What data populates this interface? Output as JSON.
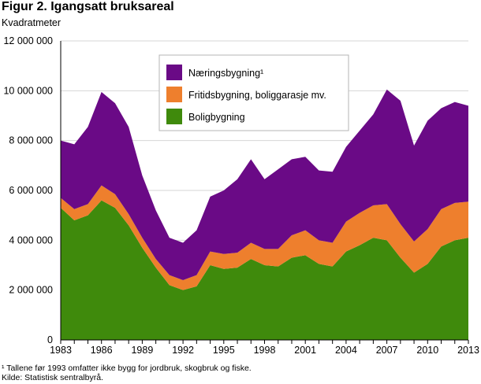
{
  "title": "Figur 2. Igangsatt bruksareal",
  "ylabel": "Kvadratmeter",
  "footnote": "¹ Tallene før 1993 omfatter ikke bygg for jordbruk, skogbruk og fiske.",
  "source": "Kilde: Statistisk sentralbyrå.",
  "colors": {
    "bolig": "#3f8a0c",
    "fritid": "#ee7f2d",
    "naering": "#6a0a86"
  },
  "chart_data": {
    "type": "area",
    "stacked": true,
    "x": [
      1983,
      1984,
      1985,
      1986,
      1987,
      1988,
      1989,
      1990,
      1991,
      1992,
      1993,
      1994,
      1995,
      1996,
      1997,
      1998,
      1999,
      2000,
      2001,
      2002,
      2003,
      2004,
      2005,
      2006,
      2007,
      2008,
      2009,
      2010,
      2011,
      2012,
      2013
    ],
    "series": [
      {
        "name": "Boligbygning",
        "values": [
          5300000,
          4800000,
          5000000,
          5600000,
          5300000,
          4600000,
          3700000,
          2900000,
          2200000,
          2000000,
          2150000,
          3000000,
          2850000,
          2900000,
          3250000,
          3000000,
          2950000,
          3300000,
          3400000,
          3050000,
          2950000,
          3550000,
          3800000,
          4100000,
          4000000,
          3300000,
          2700000,
          3050000,
          3750000,
          4000000,
          4100000
        ]
      },
      {
        "name": "Fritidsbygning, boliggarasje mv.",
        "values": [
          400000,
          450000,
          450000,
          600000,
          550000,
          450000,
          400000,
          350000,
          400000,
          400000,
          450000,
          550000,
          600000,
          600000,
          650000,
          650000,
          700000,
          900000,
          1000000,
          950000,
          950000,
          1200000,
          1300000,
          1300000,
          1450000,
          1350000,
          1250000,
          1400000,
          1500000,
          1500000,
          1450000
        ]
      },
      {
        "name": "Næringsbygning¹",
        "values": [
          2300000,
          2600000,
          3100000,
          3750000,
          3650000,
          3500000,
          2500000,
          1950000,
          1500000,
          1500000,
          1800000,
          2200000,
          2550000,
          2950000,
          3350000,
          2800000,
          3200000,
          3050000,
          2950000,
          2800000,
          2850000,
          3000000,
          3300000,
          3650000,
          4600000,
          4950000,
          3850000,
          4350000,
          4050000,
          4050000,
          3850000
        ]
      }
    ],
    "x_ticks": [
      "1983",
      "1986",
      "1989",
      "1992",
      "1995",
      "1998",
      "2001",
      "2004",
      "2007",
      "2010",
      "2013"
    ],
    "y_ticks": [
      "0",
      "2 000 000",
      "4 000 000",
      "6 000 000",
      "8 000 000",
      "10 000 000",
      "12 000 000"
    ],
    "ylim": [
      0,
      12000000
    ],
    "legend": {
      "items": [
        "Næringsbygning¹",
        "Fritidsbygning, boliggarasje mv.",
        "Boligbygning"
      ],
      "placement": "top-center"
    },
    "grid": true
  }
}
